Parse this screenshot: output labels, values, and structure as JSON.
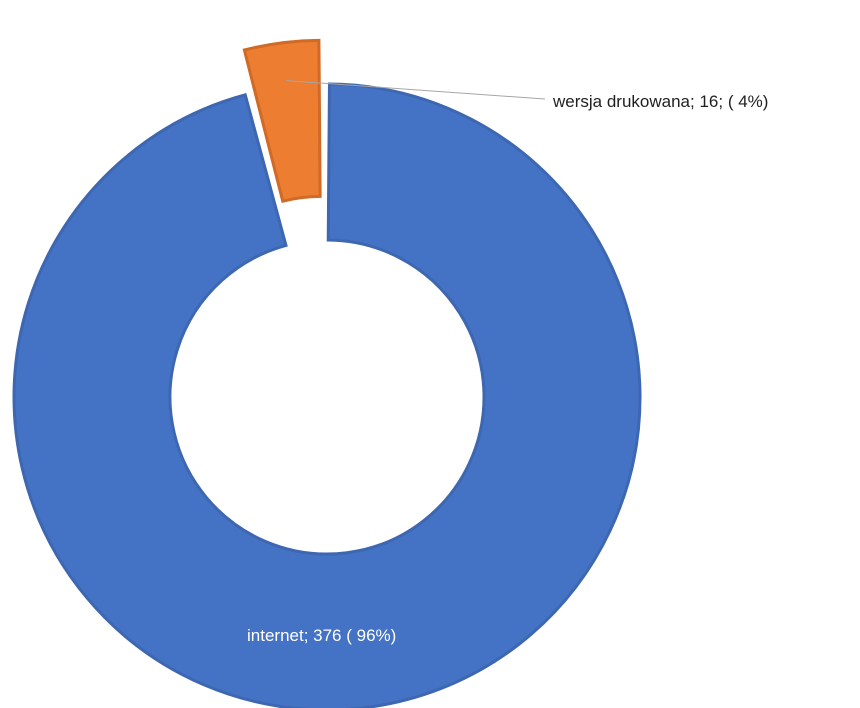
{
  "chart_data": {
    "type": "pie",
    "style": "doughnut",
    "slices": [
      {
        "label": "internet",
        "value": 376,
        "percent_text": "96%",
        "color": "#4472c4",
        "edge_color": "#3e67b1",
        "exploded": false
      },
      {
        "label": "wersja drukowana",
        "value": 16,
        "percent_text": "4%",
        "color": "#ed7d31",
        "edge_color": "#d06a26",
        "exploded": true
      }
    ],
    "data_labels": [
      "internet; 376 ( 96%)",
      "wersja drukowana; 16; ( 4%)"
    ],
    "legend": "none",
    "title": ""
  }
}
